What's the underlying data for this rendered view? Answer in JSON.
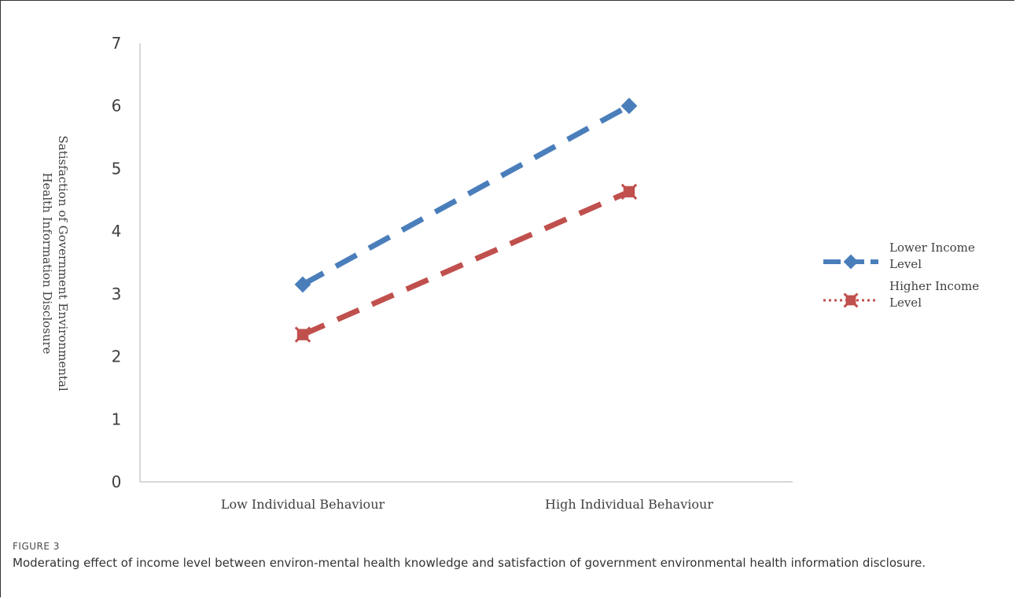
{
  "chart_data": {
    "type": "line",
    "categories": [
      "Low Individual Behaviour",
      "High Individual Behaviour"
    ],
    "series": [
      {
        "name": "Lower Income Level",
        "name_lines": [
          "Lower Income",
          "Level"
        ],
        "values": [
          3.15,
          6.0
        ],
        "color": "#4a7ebb",
        "marker": "diamond"
      },
      {
        "name": "Higher Income Level",
        "name_lines": [
          "Higher Income",
          "Level"
        ],
        "values": [
          2.35,
          4.63
        ],
        "color": "#c0504d",
        "marker": "square-x"
      }
    ],
    "ylabel": "Satisfaction of Government Environmental Health Information Disclosure",
    "ylabel_lines": [
      "Satisfaction of Government Environmental",
      "Health Information Disclosure"
    ],
    "yticks": [
      0,
      1,
      2,
      3,
      4,
      5,
      6,
      7
    ],
    "ylim": [
      0,
      7
    ],
    "grid": false,
    "legend_position": "right"
  },
  "figure": {
    "label": "FIGURE 3",
    "caption": "Moderating effect of income level between environ-mental health knowledge and satisfaction of government environmental health information disclosure."
  }
}
